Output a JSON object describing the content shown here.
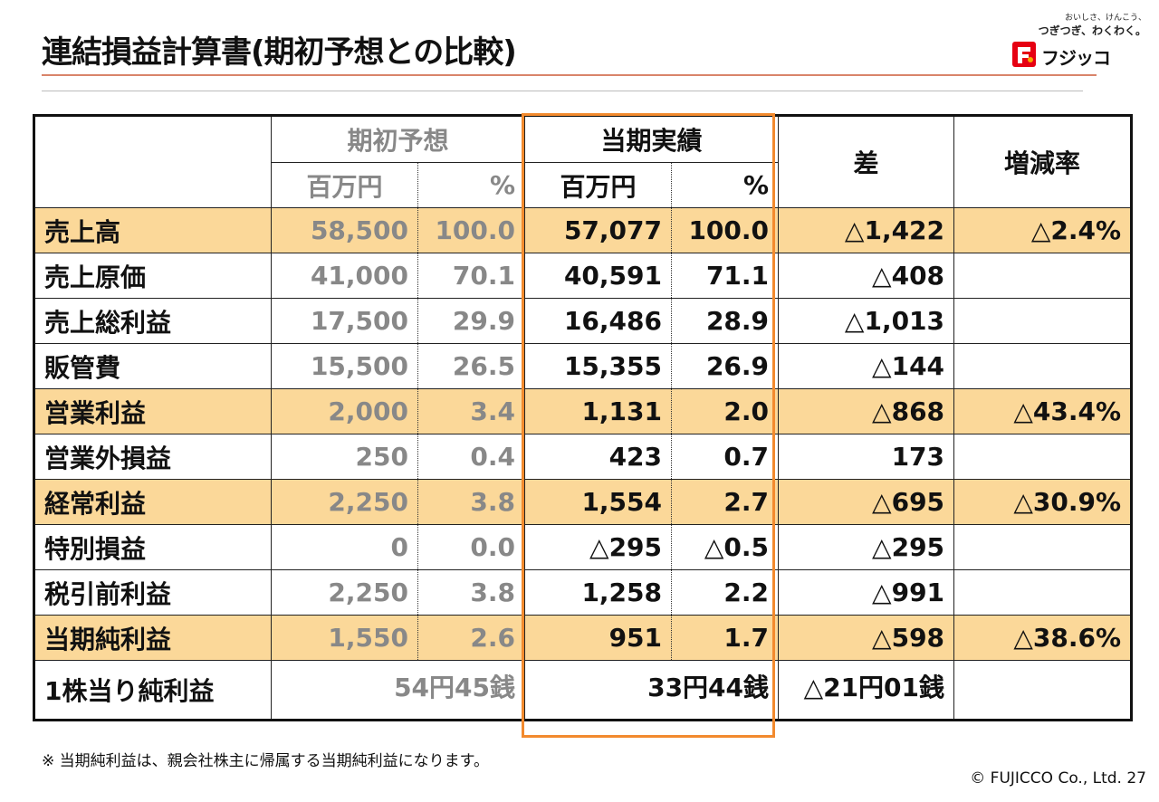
{
  "title": "連結損益計算書(期初予想との比較)",
  "logo": {
    "slogan_line1": "おいしさ、けんこう、",
    "slogan_line2": "つぎつぎ、わくわく。",
    "brand": "フジッコ"
  },
  "table": {
    "headers": {
      "forecast": "期初予想",
      "actual": "当期実績",
      "diff": "差",
      "rate": "増減率",
      "unit_yen": "百万円",
      "unit_pct": "%"
    },
    "rows": [
      {
        "label": "売上高",
        "fc_val": "58,500",
        "fc_pct": "100.0",
        "ac_val": "57,077",
        "ac_pct": "100.0",
        "diff": "△1,422",
        "rate": "△2.4%"
      },
      {
        "label": "売上原価",
        "fc_val": "41,000",
        "fc_pct": "70.1",
        "ac_val": "40,591",
        "ac_pct": "71.1",
        "diff": "△408",
        "rate": ""
      },
      {
        "label": "売上総利益",
        "fc_val": "17,500",
        "fc_pct": "29.9",
        "ac_val": "16,486",
        "ac_pct": "28.9",
        "diff": "△1,013",
        "rate": ""
      },
      {
        "label": "販管費",
        "fc_val": "15,500",
        "fc_pct": "26.5",
        "ac_val": "15,355",
        "ac_pct": "26.9",
        "diff": "△144",
        "rate": ""
      },
      {
        "label": "営業利益",
        "fc_val": "2,000",
        "fc_pct": "3.4",
        "ac_val": "1,131",
        "ac_pct": "2.0",
        "diff": "△868",
        "rate": "△43.4%"
      },
      {
        "label": "営業外損益",
        "fc_val": "250",
        "fc_pct": "0.4",
        "ac_val": "423",
        "ac_pct": "0.7",
        "diff": "173",
        "rate": ""
      },
      {
        "label": "経常利益",
        "fc_val": "2,250",
        "fc_pct": "3.8",
        "ac_val": "1,554",
        "ac_pct": "2.7",
        "diff": "△695",
        "rate": "△30.9%"
      },
      {
        "label": "特別損益",
        "fc_val": "0",
        "fc_pct": "0.0",
        "ac_val": "△295",
        "ac_pct": "△0.5",
        "diff": "△295",
        "rate": ""
      },
      {
        "label": "税引前利益",
        "fc_val": "2,250",
        "fc_pct": "3.8",
        "ac_val": "1,258",
        "ac_pct": "2.2",
        "diff": "△991",
        "rate": ""
      },
      {
        "label": "当期純利益",
        "fc_val": "1,550",
        "fc_pct": "2.6",
        "ac_val": "951",
        "ac_pct": "1.7",
        "diff": "△598",
        "rate": "△38.6%"
      }
    ],
    "eps": {
      "label": "1株当り純利益",
      "fc": "54円45銭",
      "ac": "33円44銭",
      "diff": "△21円01銭",
      "rate": ""
    }
  },
  "note": "※ 当期純利益は、親会社株主に帰属する当期純利益になります。",
  "footer": "© FUJICCO Co., Ltd.  27",
  "colors": {
    "highlight": "#fbd899",
    "frame": "#f28a2e",
    "rule": "#d9846a",
    "forecast_text": "#888888"
  }
}
